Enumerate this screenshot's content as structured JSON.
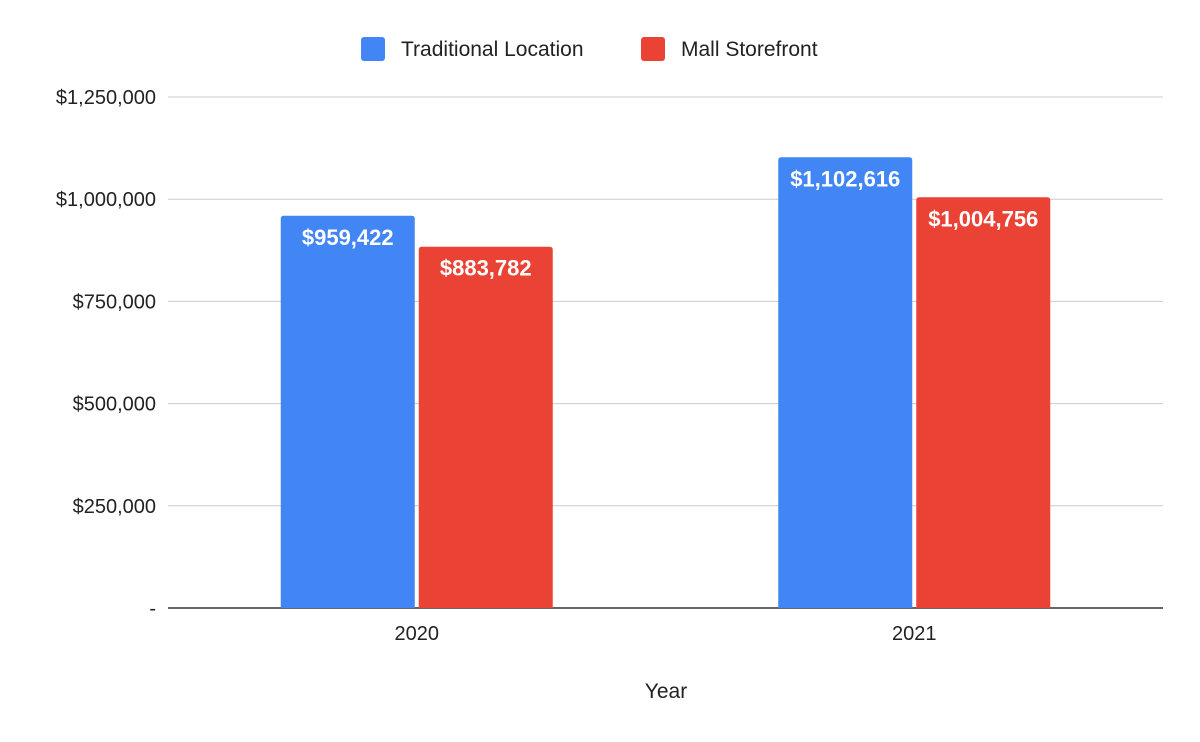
{
  "chart_data": {
    "type": "bar",
    "title": "",
    "xlabel": "Year",
    "ylabel": "",
    "categories": [
      "2020",
      "2021"
    ],
    "series": [
      {
        "name": "Traditional Location",
        "color": "#4285f4",
        "values": [
          959422,
          1102616
        ],
        "labels": [
          "$959,422",
          "$1,102,616"
        ]
      },
      {
        "name": "Mall Storefront",
        "color": "#ea4335",
        "values": [
          883782,
          1004756
        ],
        "labels": [
          "$883,782",
          "$1,004,756"
        ]
      }
    ],
    "ylim": [
      0,
      1250000
    ],
    "yticks": [
      0,
      250000,
      500000,
      750000,
      1000000,
      1250000
    ],
    "ytick_labels": [
      "-",
      "$250,000",
      "$500,000",
      "$750,000",
      "$1,000,000",
      "$1,250,000"
    ],
    "grid": true,
    "legend_position": "top-center"
  }
}
